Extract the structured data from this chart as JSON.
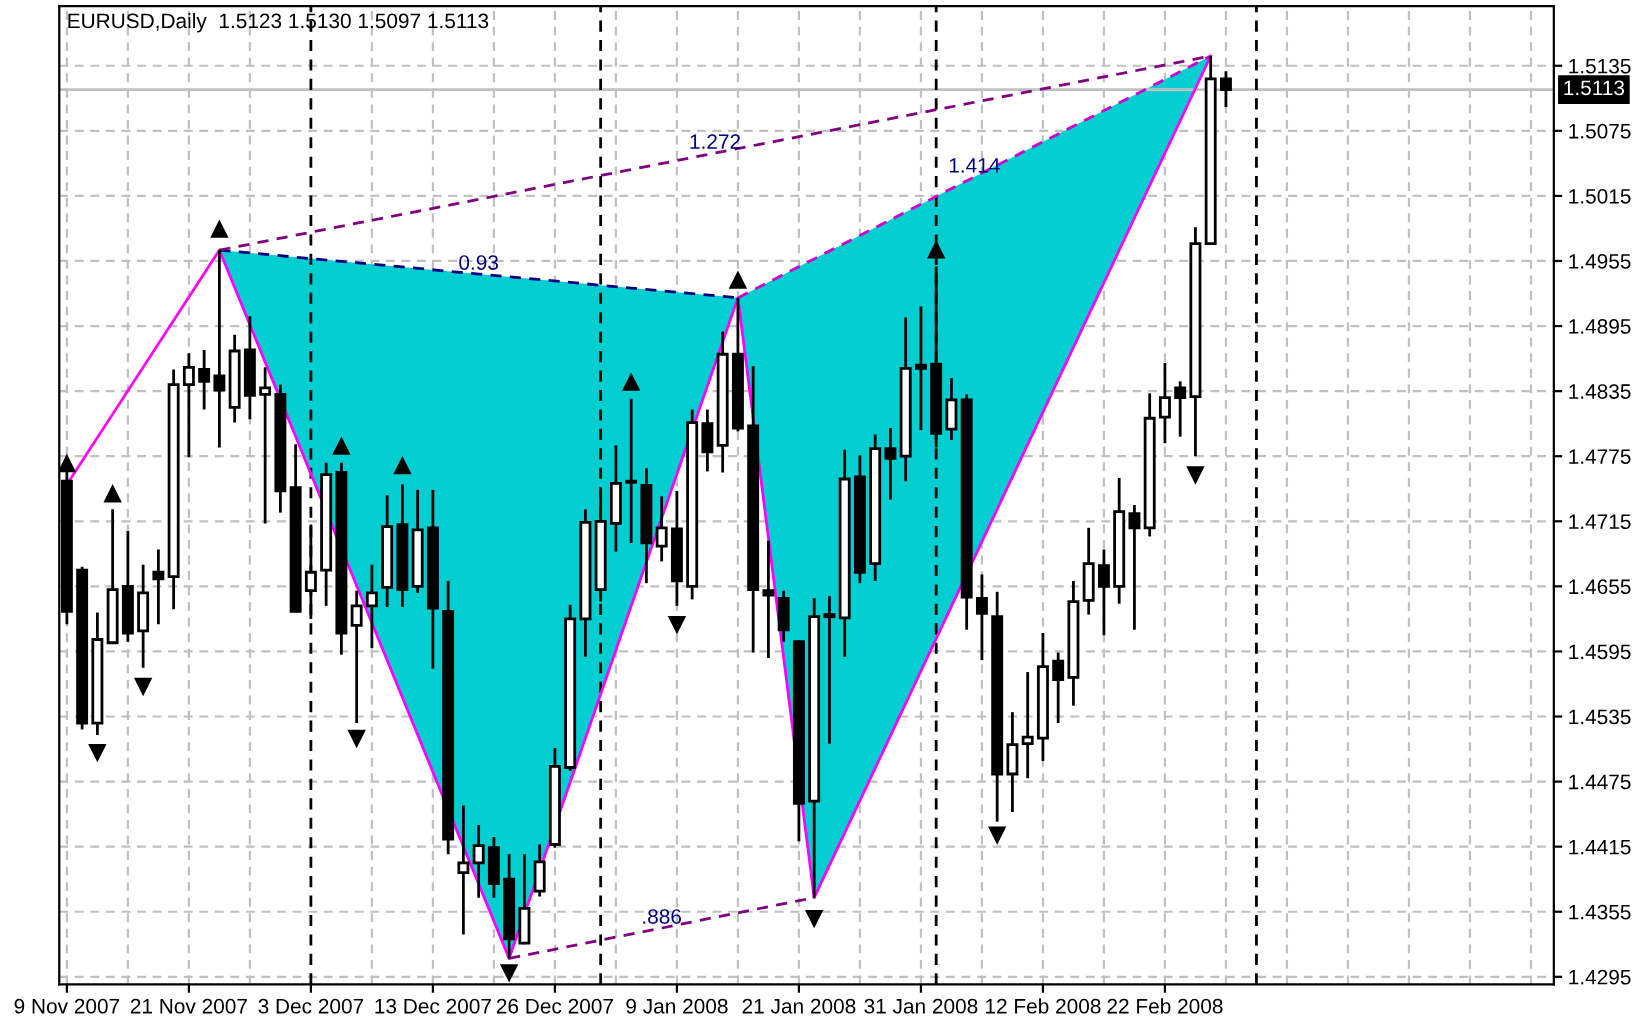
{
  "chart_data": {
    "type": "candlestick",
    "title": "EURUSD,Daily  1.5123 1.5130 1.5097 1.5113",
    "categories": [
      "9 Nov 2007",
      null,
      null,
      null,
      null,
      null,
      null,
      null,
      "21 Nov 2007",
      null,
      null,
      null,
      null,
      null,
      null,
      null,
      "3 Dec 2007",
      null,
      null,
      null,
      null,
      null,
      null,
      null,
      "13 Dec 2007",
      null,
      null,
      null,
      null,
      null,
      null,
      null,
      "26 Dec 2007",
      null,
      null,
      null,
      null,
      null,
      null,
      null,
      "9 Jan 2008",
      null,
      null,
      null,
      null,
      null,
      null,
      null,
      "21 Jan 2008",
      null,
      null,
      null,
      null,
      null,
      null,
      null,
      "31 Jan 2008",
      null,
      null,
      null,
      null,
      null,
      null,
      null,
      "12 Feb 2008",
      null,
      null,
      null,
      null,
      null,
      null,
      null,
      "22 Feb 2008",
      null,
      null,
      null,
      null,
      null,
      null,
      null,
      null,
      null,
      null,
      null,
      null,
      null,
      null,
      null,
      null,
      null,
      null,
      null,
      null,
      null,
      null,
      null,
      null,
      null
    ],
    "ohlc": [
      [
        1.4752,
        1.4765,
        1.462,
        1.4632
      ],
      [
        1.467,
        1.4673,
        1.4523,
        1.4529
      ],
      [
        1.4529,
        1.4631,
        1.4518,
        1.4606
      ],
      [
        1.4603,
        1.4726,
        1.4602,
        1.4652
      ],
      [
        1.4655,
        1.4706,
        1.4604,
        1.4612
      ],
      [
        1.4614,
        1.4675,
        1.458,
        1.4649
      ],
      [
        1.4668,
        1.4689,
        1.462,
        1.4662
      ],
      [
        1.4664,
        1.4855,
        1.4634,
        1.4841
      ],
      [
        1.4841,
        1.487,
        1.4774,
        1.4857
      ],
      [
        1.4855,
        1.4873,
        1.4818,
        1.4844
      ],
      [
        1.4849,
        1.4965,
        1.4783,
        1.4836
      ],
      [
        1.482,
        1.4887,
        1.4806,
        1.4872
      ],
      [
        1.4873,
        1.4904,
        1.4809,
        1.4831
      ],
      [
        1.4832,
        1.4857,
        1.4713,
        1.4838
      ],
      [
        1.4832,
        1.4841,
        1.4723,
        1.4743
      ],
      [
        1.4746,
        1.4786,
        1.4631,
        1.4632
      ],
      [
        1.4651,
        1.4712,
        1.4625,
        1.4668
      ],
      [
        1.467,
        1.4769,
        1.4637,
        1.4758
      ],
      [
        1.476,
        1.4769,
        1.4592,
        1.4612
      ],
      [
        1.4619,
        1.4651,
        1.4529,
        1.4637
      ],
      [
        1.4637,
        1.4675,
        1.4598,
        1.4649
      ],
      [
        1.4654,
        1.4739,
        1.4636,
        1.471
      ],
      [
        1.4712,
        1.4749,
        1.4636,
        1.4652
      ],
      [
        1.4655,
        1.4744,
        1.4649,
        1.4707
      ],
      [
        1.4709,
        1.4744,
        1.4579,
        1.4635
      ],
      [
        1.4632,
        1.466,
        1.4408,
        1.4422
      ],
      [
        1.4391,
        1.4453,
        1.4334,
        1.44
      ],
      [
        1.44,
        1.4435,
        1.4368,
        1.4416
      ],
      [
        1.4414,
        1.4424,
        1.4368,
        1.4381
      ],
      [
        1.4385,
        1.4408,
        1.4312,
        1.433
      ],
      [
        1.4326,
        1.4408,
        1.4325,
        1.4358
      ],
      [
        1.4374,
        1.4417,
        1.4369,
        1.4401
      ],
      [
        1.4417,
        1.4506,
        1.4414,
        1.4489
      ],
      [
        1.4488,
        1.4638,
        1.4485,
        1.4625
      ],
      [
        1.4625,
        1.4726,
        1.459,
        1.4714
      ],
      [
        1.4652,
        1.4743,
        1.4641,
        1.4715
      ],
      [
        1.4713,
        1.4785,
        1.4687,
        1.475
      ],
      [
        1.4752,
        1.4828,
        1.4695,
        1.4751
      ],
      [
        1.4748,
        1.4764,
        1.4658,
        1.4695
      ],
      [
        1.4692,
        1.4738,
        1.4678,
        1.4709
      ],
      [
        1.4708,
        1.4743,
        1.4637,
        1.466
      ],
      [
        1.4655,
        1.4818,
        1.4643,
        1.4806
      ],
      [
        1.4805,
        1.4818,
        1.4761,
        1.4779
      ],
      [
        1.4785,
        1.489,
        1.476,
        1.4869
      ],
      [
        1.4869,
        1.4921,
        1.4798,
        1.4801
      ],
      [
        1.4803,
        1.4858,
        1.4594,
        1.4652
      ],
      [
        1.4651,
        1.4697,
        1.4589,
        1.4647
      ],
      [
        1.4644,
        1.4651,
        1.4604,
        1.4615
      ],
      [
        1.4604,
        1.4605,
        1.442,
        1.4455
      ],
      [
        1.4457,
        1.4644,
        1.4368,
        1.4627
      ],
      [
        1.4629,
        1.4646,
        1.451,
        1.4627
      ],
      [
        1.4626,
        1.4781,
        1.459,
        1.4754
      ],
      [
        1.4756,
        1.4776,
        1.4658,
        1.4668
      ],
      [
        1.4676,
        1.4795,
        1.466,
        1.4782
      ],
      [
        1.4782,
        1.4801,
        1.4735,
        1.4773
      ],
      [
        1.4775,
        1.4903,
        1.4752,
        1.4856
      ],
      [
        1.4859,
        1.4913,
        1.4799,
        1.4856
      ],
      [
        1.486,
        1.495,
        1.4783,
        1.4796
      ],
      [
        1.48,
        1.4847,
        1.479,
        1.4827
      ],
      [
        1.4827,
        1.4832,
        1.4615,
        1.4645
      ],
      [
        1.4644,
        1.4666,
        1.4587,
        1.463
      ],
      [
        1.4627,
        1.465,
        1.4438,
        1.4482
      ],
      [
        1.4482,
        1.4539,
        1.4447,
        1.4509
      ],
      [
        1.451,
        1.4576,
        1.4478,
        1.4516
      ],
      [
        1.4515,
        1.4612,
        1.4494,
        1.4581
      ],
      [
        1.4586,
        1.4594,
        1.4529,
        1.4569
      ],
      [
        1.4571,
        1.466,
        1.4545,
        1.4641
      ],
      [
        1.4642,
        1.4709,
        1.4629,
        1.4676
      ],
      [
        1.4674,
        1.4689,
        1.461,
        1.4655
      ],
      [
        1.4655,
        1.4755,
        1.4639,
        1.4724
      ],
      [
        1.4722,
        1.473,
        1.4615,
        1.4709
      ],
      [
        1.4709,
        1.4833,
        1.4701,
        1.481
      ],
      [
        1.4811,
        1.4861,
        1.4787,
        1.4829
      ],
      [
        1.4838,
        1.4844,
        1.4793,
        1.4829
      ],
      [
        1.483,
        1.4986,
        1.4775,
        1.4971
      ],
      [
        1.4971,
        1.5144,
        1.497,
        1.5123
      ],
      [
        1.5123,
        1.513,
        1.5097,
        1.5113
      ],
      null,
      null,
      null,
      null,
      null,
      null,
      null,
      null,
      null,
      null,
      null,
      null,
      null,
      null,
      null,
      null,
      null,
      null,
      null,
      null,
      null
    ],
    "series": [
      {
        "type": "line",
        "color": "#ff00ff",
        "line_style": "solid",
        "values": [
          1.4749,
          null,
          null,
          null,
          null,
          null,
          null,
          null,
          null,
          null,
          1.4965,
          null,
          null,
          null,
          null,
          null,
          null,
          null,
          null,
          null,
          null,
          null,
          null,
          null,
          null,
          null,
          null,
          null,
          null,
          1.4312,
          null,
          null,
          null,
          null,
          null,
          null,
          null,
          null,
          null,
          null,
          null,
          null,
          null,
          null,
          1.4921,
          null,
          null,
          null,
          null,
          1.4368,
          null,
          null,
          null,
          null,
          null,
          null,
          null,
          null,
          null,
          null,
          null,
          null,
          null,
          null,
          null,
          null,
          null,
          null,
          null,
          null,
          null,
          null,
          null,
          null,
          null,
          1.5144,
          null,
          null,
          null,
          null,
          null,
          null,
          null,
          null,
          null,
          null,
          null,
          null,
          null,
          null,
          null,
          null,
          null,
          null,
          null,
          null,
          null,
          null
        ]
      },
      {
        "type": "line",
        "name": "0.93",
        "color": "#000080",
        "line_style": "dashed",
        "values": [
          null,
          null,
          null,
          null,
          null,
          null,
          null,
          null,
          null,
          null,
          1.4965,
          null,
          null,
          null,
          null,
          null,
          null,
          null,
          null,
          null,
          null,
          null,
          null,
          null,
          null,
          null,
          null,
          null,
          null,
          null,
          null,
          null,
          null,
          null,
          null,
          null,
          null,
          null,
          null,
          null,
          null,
          null,
          null,
          null,
          1.4921,
          null,
          null,
          null,
          null,
          null,
          null,
          null,
          null,
          null,
          null,
          null,
          null,
          null,
          null,
          null,
          null,
          null,
          null,
          null,
          null,
          null,
          null,
          null,
          null,
          null,
          null,
          null,
          null,
          null,
          null,
          null,
          null,
          null,
          null,
          null,
          null,
          null,
          null,
          null,
          null,
          null,
          null,
          null,
          null,
          null,
          null,
          null,
          null,
          null,
          null,
          null,
          null,
          null
        ]
      },
      {
        "type": "line",
        "name": "1.272",
        "color": "#800080",
        "line_style": "dashed",
        "values": [
          null,
          null,
          null,
          null,
          null,
          null,
          null,
          null,
          null,
          null,
          1.4965,
          null,
          null,
          null,
          null,
          null,
          null,
          null,
          null,
          null,
          null,
          null,
          null,
          null,
          null,
          null,
          null,
          null,
          null,
          null,
          null,
          null,
          null,
          null,
          null,
          null,
          null,
          null,
          null,
          null,
          null,
          null,
          null,
          null,
          null,
          null,
          null,
          null,
          null,
          null,
          null,
          null,
          null,
          null,
          null,
          null,
          null,
          null,
          null,
          null,
          null,
          null,
          null,
          null,
          null,
          null,
          null,
          null,
          null,
          null,
          null,
          null,
          null,
          null,
          null,
          1.5144,
          null,
          null,
          null,
          null,
          null,
          null,
          null,
          null,
          null,
          null,
          null,
          null,
          null,
          null,
          null,
          null,
          null,
          null,
          null,
          null,
          null,
          null
        ]
      },
      {
        "type": "line",
        "name": "1.414",
        "color": "#cc00cc",
        "line_style": "dashed",
        "values": [
          null,
          null,
          null,
          null,
          null,
          null,
          null,
          null,
          null,
          null,
          null,
          null,
          null,
          null,
          null,
          null,
          null,
          null,
          null,
          null,
          null,
          null,
          null,
          null,
          null,
          null,
          null,
          null,
          null,
          null,
          null,
          null,
          null,
          null,
          null,
          null,
          null,
          null,
          null,
          null,
          null,
          null,
          null,
          null,
          1.4921,
          null,
          null,
          null,
          null,
          null,
          null,
          null,
          null,
          null,
          null,
          null,
          null,
          null,
          null,
          null,
          null,
          null,
          null,
          null,
          null,
          null,
          null,
          null,
          null,
          null,
          null,
          null,
          null,
          null,
          null,
          1.5144,
          null,
          null,
          null,
          null,
          null,
          null,
          null,
          null,
          null,
          null,
          null,
          null,
          null,
          null,
          null,
          null,
          null,
          null,
          null,
          null,
          null,
          null
        ]
      },
      {
        "type": "line",
        "name": ".886",
        "color": "#800080",
        "line_style": "dashed",
        "values": [
          null,
          null,
          null,
          null,
          null,
          null,
          null,
          null,
          null,
          null,
          null,
          null,
          null,
          null,
          null,
          null,
          null,
          null,
          null,
          null,
          null,
          null,
          null,
          null,
          null,
          null,
          null,
          null,
          null,
          1.4312,
          null,
          null,
          null,
          null,
          null,
          null,
          null,
          null,
          null,
          null,
          null,
          null,
          null,
          null,
          null,
          null,
          null,
          null,
          null,
          1.4368,
          null,
          null,
          null,
          null,
          null,
          null,
          null,
          null,
          null,
          null,
          null,
          null,
          null,
          null,
          null,
          null,
          null,
          null,
          null,
          null,
          null,
          null,
          null,
          null,
          null,
          null,
          null,
          null,
          null,
          null,
          null,
          null,
          null,
          null,
          null,
          null,
          null,
          null,
          null,
          null,
          null,
          null,
          null,
          null,
          null,
          null,
          null,
          null
        ]
      },
      {
        "type": "scatter",
        "color": "#000000",
        "marker": "triangle",
        "values": [
          1.4768,
          null,
          null,
          1.474,
          null,
          null,
          null,
          null,
          null,
          null,
          1.4984,
          null,
          null,
          null,
          null,
          null,
          null,
          null,
          1.4784,
          null,
          null,
          null,
          1.4766,
          null,
          null,
          null,
          null,
          null,
          null,
          null,
          null,
          null,
          null,
          null,
          null,
          null,
          null,
          1.4843,
          null,
          null,
          null,
          null,
          null,
          null,
          1.4937,
          null,
          null,
          null,
          null,
          null,
          null,
          null,
          null,
          null,
          null,
          null,
          null,
          1.4965,
          null,
          null,
          null,
          null,
          null,
          null,
          null,
          null,
          null,
          null,
          null,
          null,
          null,
          null,
          null,
          null,
          null,
          null,
          null,
          null,
          null,
          null,
          null,
          null,
          null,
          null,
          null,
          null,
          null,
          null,
          null,
          null,
          null,
          null,
          null,
          null,
          null,
          null,
          null,
          null
        ]
      },
      {
        "type": "scatter",
        "color": "#000000",
        "marker": "triangle",
        "values": [
          null,
          null,
          1.4502,
          null,
          null,
          1.4563,
          null,
          null,
          null,
          null,
          null,
          null,
          null,
          null,
          null,
          null,
          null,
          null,
          null,
          1.4515,
          null,
          null,
          null,
          null,
          null,
          null,
          null,
          null,
          null,
          1.4299,
          null,
          null,
          null,
          null,
          null,
          null,
          null,
          null,
          null,
          null,
          1.462,
          null,
          null,
          null,
          null,
          null,
          null,
          null,
          null,
          1.4349,
          null,
          null,
          null,
          null,
          null,
          null,
          null,
          null,
          null,
          null,
          null,
          1.4426,
          null,
          null,
          null,
          null,
          null,
          null,
          null,
          null,
          null,
          null,
          null,
          null,
          1.4758,
          null,
          null,
          null,
          null,
          null,
          null,
          null,
          null,
          null,
          null,
          null,
          null,
          null,
          null,
          null,
          null,
          null,
          null,
          null,
          null,
          null,
          null,
          null
        ]
      }
    ],
    "ylim": [
      1.4288,
      1.519
    ],
    "yticks": [
      1.5135,
      1.5075,
      1.5015,
      1.4955,
      1.4895,
      1.4835,
      1.4775,
      1.4715,
      1.4655,
      1.4595,
      1.4535,
      1.4475,
      1.4415,
      1.4355,
      1.4295
    ],
    "grid": true,
    "ref_lines": [
      {
        "axis": "y",
        "value": 1.5113,
        "label": "1.5113",
        "color": "#c0c0c0",
        "line_style": "solid"
      }
    ]
  }
}
